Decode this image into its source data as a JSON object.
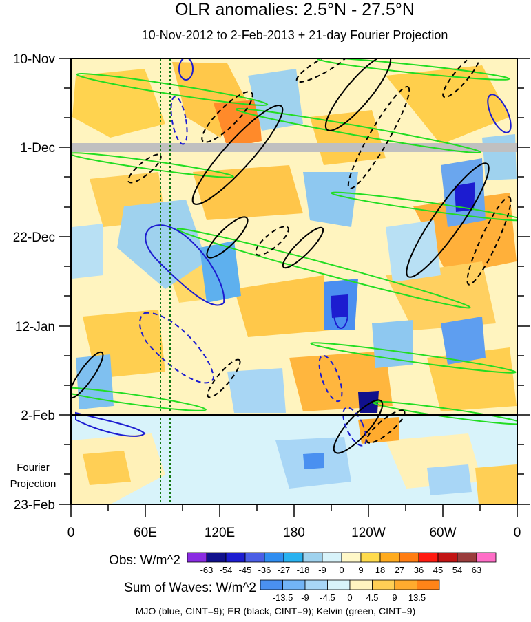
{
  "chart_data": {
    "type": "heatmap",
    "title": "OLR anomalies: 2.5°N - 27.5°N",
    "subtitle": "10-Nov-2012 to 2-Feb-2013 + 21-day Fourier Projection",
    "x_tick_labels": [
      "0",
      "60E",
      "120E",
      "180",
      "120W",
      "60W",
      "0"
    ],
    "x_range_deg_east": [
      0,
      360
    ],
    "y_tick_labels": [
      "10-Nov",
      "1-Dec",
      "22-Dec",
      "12-Jan",
      "2-Feb",
      "23-Feb"
    ],
    "y_range_days": [
      0,
      105
    ],
    "observation_end_day": 84,
    "projection_label": [
      "Fourier",
      "Projection"
    ],
    "missing_data_band_day": 21,
    "obs_colorbar": {
      "label": "Obs: W/m^2",
      "levels": [
        "-63",
        "-54",
        "-45",
        "-36",
        "-27",
        "-18",
        "-9",
        "0",
        "9",
        "18",
        "27",
        "36",
        "45",
        "54",
        "63"
      ],
      "colors": [
        "#8a2be2",
        "#10108c",
        "#1c1cd0",
        "#4a5ee6",
        "#2f8df0",
        "#29b2f0",
        "#9fd2ee",
        "#d8f3fa",
        "#fff8c8",
        "#ffdb4d",
        "#ffab1e",
        "#ff7d12",
        "#ff1a10",
        "#c21414",
        "#9a3c3c",
        "#ff6ec7"
      ]
    },
    "waves_colorbar": {
      "label": "Sum of Waves: W/m^2",
      "levels": [
        "-13.5",
        "-9",
        "-4.5",
        "0",
        "4.5",
        "9",
        "13.5"
      ],
      "colors": [
        "#4a90f0",
        "#72b4f6",
        "#a8d6f6",
        "#d8f3fa",
        "#fff4c0",
        "#ffcf55",
        "#ffab2e",
        "#ff8418"
      ]
    },
    "contour_legend": "MJO (blue, CINT=9); ER (black, CINT=9); Kelvin (green, CINT=9)",
    "contour_colors": {
      "MJO": "#1c1cd0",
      "ER": "#000000",
      "Kelvin": "#22dd22"
    },
    "reference_longitudes_deg": [
      72,
      80
    ]
  }
}
